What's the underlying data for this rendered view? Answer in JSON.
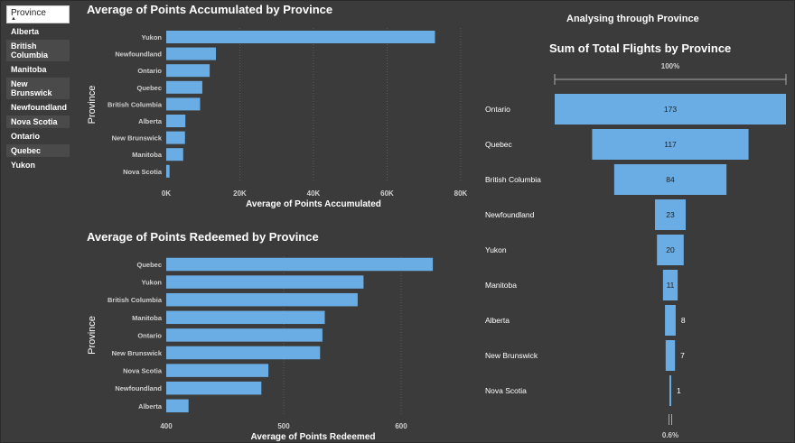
{
  "slicer": {
    "header": "Province",
    "items": [
      "Alberta",
      "British Columbia",
      "Manitoba",
      "New Brunswick",
      "Newfoundland",
      "Nova Scotia",
      "Ontario",
      "Quebec",
      "Yukon"
    ]
  },
  "page_heading": "Analysing through Province",
  "colors": {
    "bar": "#6aade4",
    "background": "#3b3b3b",
    "text": "#ffffff",
    "axis_text": "#cfcfcf"
  },
  "chart_data": [
    {
      "type": "bar",
      "orientation": "horizontal",
      "title": "Average of Points Accumulated by Province",
      "xlabel": "Average of Points Accumulated",
      "ylabel": "Province",
      "categories": [
        "Yukon",
        "Newfoundland",
        "Ontario",
        "Quebec",
        "British Columbia",
        "Alberta",
        "New Brunswick",
        "Manitoba",
        "Nova Scotia"
      ],
      "values": [
        73000,
        13500,
        11800,
        9800,
        9200,
        5200,
        5100,
        4600,
        900
      ],
      "xlim": [
        0,
        80000
      ],
      "xticks": [
        0,
        20000,
        40000,
        60000,
        80000
      ],
      "xtick_labels": [
        "0K",
        "20K",
        "40K",
        "60K",
        "80K"
      ],
      "grid": "vertical dotted"
    },
    {
      "type": "bar",
      "orientation": "horizontal",
      "title": "Average of Points Redeemed by Province",
      "xlabel": "Average of Points Redeemed",
      "ylabel": "Province",
      "categories": [
        "Quebec",
        "Yukon",
        "British Columbia",
        "Manitoba",
        "Ontario",
        "New Brunswick",
        "Nova Scotia",
        "Newfoundland",
        "Alberta"
      ],
      "values": [
        627,
        568,
        563,
        535,
        533,
        531,
        487,
        481,
        419
      ],
      "xlim": [
        400,
        650
      ],
      "xticks": [
        400,
        500,
        600
      ],
      "xtick_labels": [
        "400",
        "500",
        "600"
      ],
      "grid": "vertical dotted"
    },
    {
      "type": "funnel",
      "title": "Sum of Total Flights by Province",
      "categories": [
        "Ontario",
        "Quebec",
        "British Columbia",
        "Newfoundland",
        "Yukon",
        "Manitoba",
        "Alberta",
        "New Brunswick",
        "Nova Scotia"
      ],
      "values": [
        173,
        117,
        84,
        23,
        20,
        11,
        8,
        7,
        1
      ],
      "value_labels": [
        "173",
        "117",
        "84",
        "23",
        "20",
        "11",
        "8",
        "7",
        "1"
      ],
      "top_label": "100%",
      "bottom_label": "0.6%"
    }
  ]
}
